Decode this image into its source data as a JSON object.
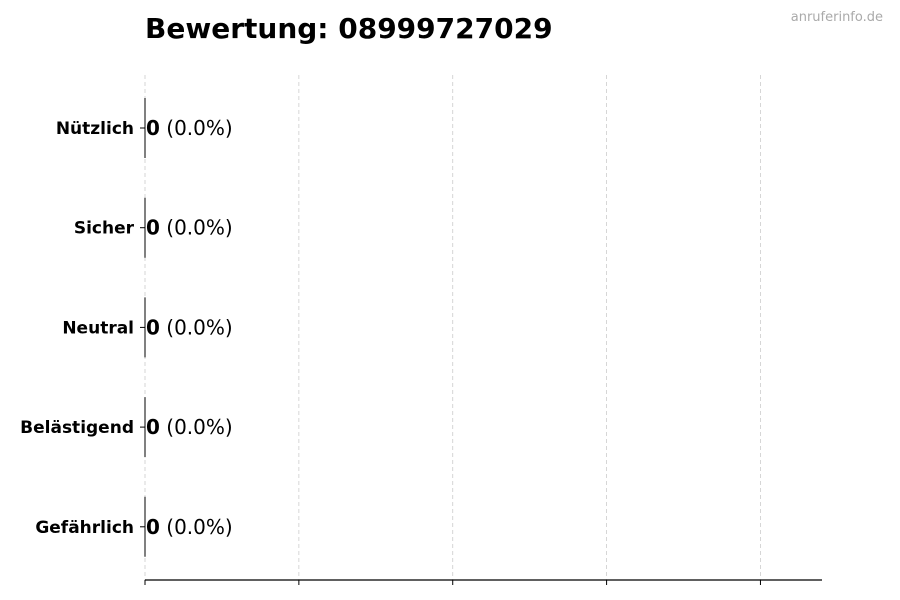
{
  "chart_data": {
    "type": "bar",
    "orientation": "horizontal",
    "title": "Bewertung: 08999727029",
    "watermark": "anruferinfo.de",
    "categories": [
      "Nützlich",
      "Sicher",
      "Neutral",
      "Belästigend",
      "Gefährlich"
    ],
    "values": [
      0,
      0,
      0,
      0,
      0
    ],
    "value_labels": [
      "0",
      "0",
      "0",
      "0",
      "0"
    ],
    "percent_labels": [
      "(0.0%)",
      "(0.0%)",
      "(0.0%)",
      "(0.0%)",
      "(0.0%)"
    ],
    "xlim": [
      0,
      4.4
    ],
    "xticks": [
      0,
      1,
      2,
      3,
      4
    ],
    "xtick_labels_shown": false,
    "grid": "x, dashed",
    "bar_color": "#000000",
    "grid_color": "#cccccc"
  }
}
